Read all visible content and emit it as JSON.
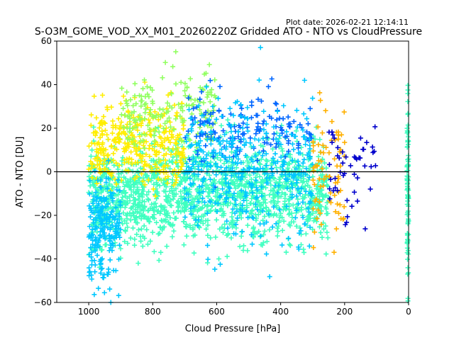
{
  "plot_date": "Plot date: 2026-02-21 12:14:11",
  "chart_data": {
    "type": "scatter",
    "title": "S-O3M_GOME_VOD_XX_M01_20260220Z Gridded ATO - NTO vs CloudPressure",
    "xlabel": "Cloud Pressure [hPa]",
    "ylabel": "ATO - NTO [DU]",
    "xlim": [
      1100,
      0
    ],
    "ylim": [
      -60,
      60
    ],
    "x_inverted": true,
    "xticks": [
      1000,
      800,
      600,
      400,
      200,
      0
    ],
    "yticks": [
      -60,
      -40,
      -20,
      0,
      20,
      40,
      60
    ],
    "marker": "+",
    "reference_line_y": 0,
    "grid": false,
    "legend": "none",
    "colors": {
      "dark_blue": "#0000cc",
      "blue": "#0066ff",
      "cyan": "#00c8ff",
      "aquamarine": "#40ffc0",
      "light_green": "#90ff60",
      "yellow": "#ffee00",
      "orange": "#ffb000"
    },
    "clusters": [
      {
        "x_range": [
          1000,
          250
        ],
        "y_center": -10,
        "y_spread": 14,
        "color": "aquamarine",
        "count": 1500
      },
      {
        "x_range": [
          1000,
          700
        ],
        "y_center": 12,
        "y_spread": 12,
        "color": "yellow",
        "count": 350
      },
      {
        "x_range": [
          900,
          600
        ],
        "y_center": 25,
        "y_spread": 12,
        "color": "light_green",
        "count": 180
      },
      {
        "x_range": [
          1000,
          900
        ],
        "y_center": -25,
        "y_spread": 15,
        "color": "cyan",
        "count": 220
      },
      {
        "x_range": [
          700,
          300
        ],
        "y_center": 20,
        "y_spread": 10,
        "color": "blue",
        "count": 160
      },
      {
        "x_range": [
          700,
          300
        ],
        "y_center": 0,
        "y_spread": 20,
        "color": "cyan",
        "count": 400
      },
      {
        "x_range": [
          300,
          200
        ],
        "y_center": 0,
        "y_spread": 20,
        "color": "orange",
        "count": 80
      },
      {
        "x_range": [
          250,
          100
        ],
        "y_center": 0,
        "y_spread": 15,
        "color": "dark_blue",
        "count": 50
      },
      {
        "x_range": [
          5,
          0
        ],
        "y_center": -10,
        "y_spread": 25,
        "color": "aquamarine",
        "count": 90
      }
    ]
  }
}
